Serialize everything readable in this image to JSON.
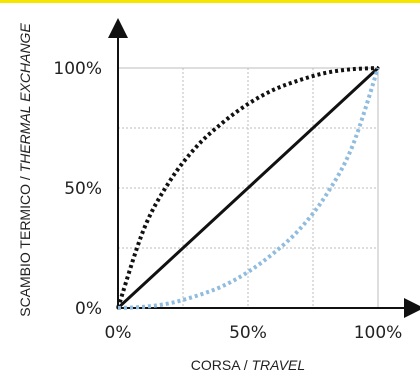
{
  "chart_data": {
    "type": "line",
    "title": "",
    "xlabel": {
      "main": "CORSA / ",
      "italic": "TRAVEL"
    },
    "ylabel": {
      "main": "SCAMBIO TERMICO / ",
      "italic": "THERMAL EXCHANGE"
    },
    "xlim": [
      0,
      100
    ],
    "ylim": [
      0,
      100
    ],
    "x_ticks": [
      "0%",
      "50%",
      "100%"
    ],
    "y_ticks": [
      "0%",
      "50%",
      "100%"
    ],
    "grid": true,
    "series": [
      {
        "style": "solid",
        "color": "#111111",
        "x": [
          0,
          100
        ],
        "y": [
          0,
          100
        ]
      },
      {
        "style": "dotted",
        "color": "#111111",
        "x": [
          0,
          10,
          20,
          30,
          40,
          50,
          60,
          70,
          80,
          90,
          100
        ],
        "y": [
          0,
          33,
          53,
          67,
          77,
          85,
          91,
          95,
          98,
          99.5,
          100
        ]
      },
      {
        "style": "dotted",
        "color": "#8fbcdf",
        "x": [
          0,
          10,
          20,
          30,
          40,
          50,
          60,
          70,
          80,
          90,
          100
        ],
        "y": [
          0,
          0.5,
          2,
          5,
          9,
          15,
          23,
          33,
          47,
          67,
          100
        ]
      }
    ]
  }
}
